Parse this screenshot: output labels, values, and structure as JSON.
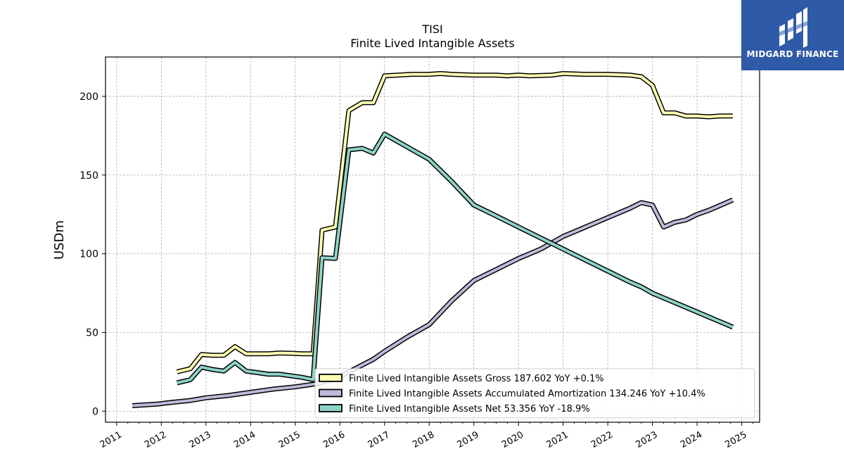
{
  "chart_data": {
    "type": "line",
    "title": "TISI",
    "subtitle": "Finite Lived Intangible Assets",
    "ylabel": "USDm",
    "xlabel": "",
    "xlim": [
      2010.75,
      2025.4
    ],
    "ylim": [
      -7,
      225
    ],
    "yticks": [
      0,
      50,
      100,
      150,
      200
    ],
    "xticks": [
      "2011",
      "2012",
      "2013",
      "2014",
      "2015",
      "2016",
      "2017",
      "2018",
      "2019",
      "2020",
      "2021",
      "2022",
      "2023",
      "2024",
      "2025"
    ],
    "grid": true,
    "legend_position": "lower-right",
    "series": [
      {
        "name": "Finite Lived Intangible Assets Gross",
        "legend": "Finite Lived Intangible Assets Gross  187.602 YoY +0.1%",
        "color": "#ffffb3",
        "points": [
          [
            2012.35,
            25
          ],
          [
            2012.65,
            27
          ],
          [
            2012.9,
            36
          ],
          [
            2013.15,
            35.5
          ],
          [
            2013.4,
            35.5
          ],
          [
            2013.65,
            41
          ],
          [
            2013.9,
            36.5
          ],
          [
            2014.15,
            36.5
          ],
          [
            2014.4,
            36.5
          ],
          [
            2014.65,
            37
          ],
          [
            2014.9,
            36.8
          ],
          [
            2015.15,
            36.5
          ],
          [
            2015.4,
            36.5
          ],
          [
            2015.6,
            115
          ],
          [
            2015.9,
            117
          ],
          [
            2016.2,
            191
          ],
          [
            2016.5,
            196
          ],
          [
            2016.75,
            196
          ],
          [
            2017.0,
            213
          ],
          [
            2017.3,
            213.5
          ],
          [
            2017.6,
            214
          ],
          [
            2018.0,
            214
          ],
          [
            2018.25,
            214.5
          ],
          [
            2018.5,
            214
          ],
          [
            2019.0,
            213.5
          ],
          [
            2019.5,
            213.5
          ],
          [
            2019.75,
            213
          ],
          [
            2020.0,
            213.5
          ],
          [
            2020.25,
            213
          ],
          [
            2020.75,
            213.5
          ],
          [
            2021.0,
            214.5
          ],
          [
            2021.5,
            214
          ],
          [
            2022.0,
            214
          ],
          [
            2022.5,
            213.5
          ],
          [
            2022.75,
            212.5
          ],
          [
            2023.0,
            207
          ],
          [
            2023.25,
            189.5
          ],
          [
            2023.5,
            189.5
          ],
          [
            2023.75,
            187.5
          ],
          [
            2024.0,
            187.5
          ],
          [
            2024.25,
            187
          ],
          [
            2024.5,
            187.5
          ],
          [
            2024.8,
            187.6
          ]
        ]
      },
      {
        "name": "Finite Lived Intangible Assets Accumulated Amortization",
        "legend": "Finite Lived Intangible Assets Accumulated Amortization  134.246 YoY +10.4%",
        "color": "#bebada",
        "points": [
          [
            2011.35,
            3.5
          ],
          [
            2011.9,
            4.5
          ],
          [
            2012.2,
            5.5
          ],
          [
            2012.65,
            6.8
          ],
          [
            2013.0,
            8.5
          ],
          [
            2013.5,
            10
          ],
          [
            2014.0,
            12
          ],
          [
            2014.5,
            14
          ],
          [
            2015.0,
            15.5
          ],
          [
            2015.5,
            17.5
          ],
          [
            2016.0,
            22
          ],
          [
            2016.75,
            33
          ],
          [
            2017.0,
            38
          ],
          [
            2017.5,
            47
          ],
          [
            2018.0,
            55
          ],
          [
            2018.5,
            70
          ],
          [
            2019.0,
            83
          ],
          [
            2019.5,
            90
          ],
          [
            2020.0,
            97
          ],
          [
            2020.25,
            100
          ],
          [
            2020.5,
            103
          ],
          [
            2021.0,
            111
          ],
          [
            2021.5,
            117
          ],
          [
            2022.0,
            123
          ],
          [
            2022.25,
            126
          ],
          [
            2022.5,
            129
          ],
          [
            2022.75,
            132.5
          ],
          [
            2023.0,
            131
          ],
          [
            2023.25,
            117
          ],
          [
            2023.5,
            120
          ],
          [
            2023.75,
            121.5
          ],
          [
            2024.0,
            125
          ],
          [
            2024.25,
            127.5
          ],
          [
            2024.5,
            130.5
          ],
          [
            2024.8,
            134.2
          ]
        ]
      },
      {
        "name": "Finite Lived Intangible Assets Net",
        "legend": "Finite Lived Intangible Assets Net  53.356 YoY -18.9%",
        "color": "#8dd3c7",
        "points": [
          [
            2012.35,
            18
          ],
          [
            2012.65,
            20
          ],
          [
            2012.9,
            28
          ],
          [
            2013.15,
            26.5
          ],
          [
            2013.4,
            25.5
          ],
          [
            2013.65,
            31
          ],
          [
            2013.9,
            25.5
          ],
          [
            2014.15,
            24.5
          ],
          [
            2014.4,
            23.5
          ],
          [
            2014.65,
            23.5
          ],
          [
            2014.9,
            22.5
          ],
          [
            2015.15,
            21.5
          ],
          [
            2015.4,
            20
          ],
          [
            2015.6,
            97.5
          ],
          [
            2015.9,
            97
          ],
          [
            2016.2,
            166
          ],
          [
            2016.5,
            167
          ],
          [
            2016.75,
            164
          ],
          [
            2017.0,
            176
          ],
          [
            2017.5,
            168
          ],
          [
            2018.0,
            160
          ],
          [
            2018.5,
            146
          ],
          [
            2019.0,
            131
          ],
          [
            2019.5,
            124
          ],
          [
            2020.0,
            117
          ],
          [
            2020.5,
            110
          ],
          [
            2021.0,
            103
          ],
          [
            2021.5,
            96
          ],
          [
            2022.0,
            89
          ],
          [
            2022.5,
            82
          ],
          [
            2022.75,
            79
          ],
          [
            2023.0,
            75
          ],
          [
            2023.5,
            69
          ],
          [
            2024.0,
            63
          ],
          [
            2024.5,
            57
          ],
          [
            2024.8,
            53.4
          ]
        ]
      }
    ]
  },
  "logo": {
    "text": "MIDGARD FINANCE",
    "background": "#2f5aa8"
  }
}
